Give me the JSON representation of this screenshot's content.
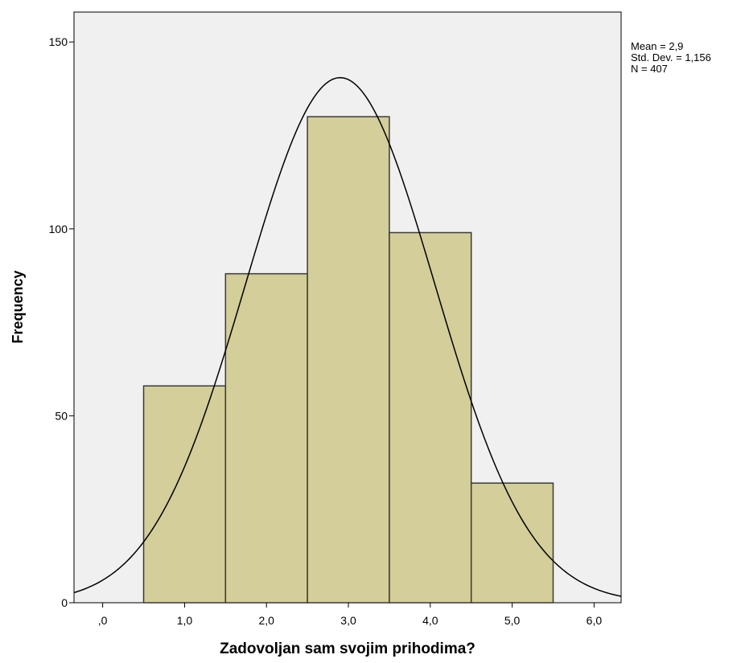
{
  "chart_data": {
    "type": "bar",
    "title": "",
    "xlabel": "Zadovoljan sam svojim prihodima?",
    "ylabel": "Frequency",
    "bins": [
      {
        "from": 0.5,
        "to": 1.5,
        "value": 58
      },
      {
        "from": 1.5,
        "to": 2.5,
        "value": 88
      },
      {
        "from": 2.5,
        "to": 3.5,
        "value": 130
      },
      {
        "from": 3.5,
        "to": 4.5,
        "value": 99
      },
      {
        "from": 4.5,
        "to": 5.5,
        "value": 32
      }
    ],
    "xlim": [
      -0.35,
      6.33
    ],
    "ylim": [
      0,
      158
    ],
    "x_ticks": [
      {
        "value": 0,
        "label": ",0"
      },
      {
        "value": 1,
        "label": "1,0"
      },
      {
        "value": 2,
        "label": "2,0"
      },
      {
        "value": 3,
        "label": "3,0"
      },
      {
        "value": 4,
        "label": "4,0"
      },
      {
        "value": 5,
        "label": "5,0"
      },
      {
        "value": 6,
        "label": "6,0"
      }
    ],
    "y_ticks": [
      {
        "value": 0,
        "label": "0"
      },
      {
        "value": 50,
        "label": "50"
      },
      {
        "value": 100,
        "label": "100"
      },
      {
        "value": 150,
        "label": "150"
      }
    ],
    "normal_curve": {
      "mean": 2.9,
      "std_dev": 1.156,
      "n": 407,
      "bin_width": 1
    },
    "stats_lines": [
      "Mean = 2,9",
      "Std. Dev. = 1,156",
      "N = 407"
    ],
    "grid": false,
    "legend": "none",
    "colors": {
      "bar_fill": "#d3ce9a",
      "bar_stroke": "#3a3a3a",
      "plot_bg": "#f0f0f0",
      "curve": "#000000"
    }
  }
}
